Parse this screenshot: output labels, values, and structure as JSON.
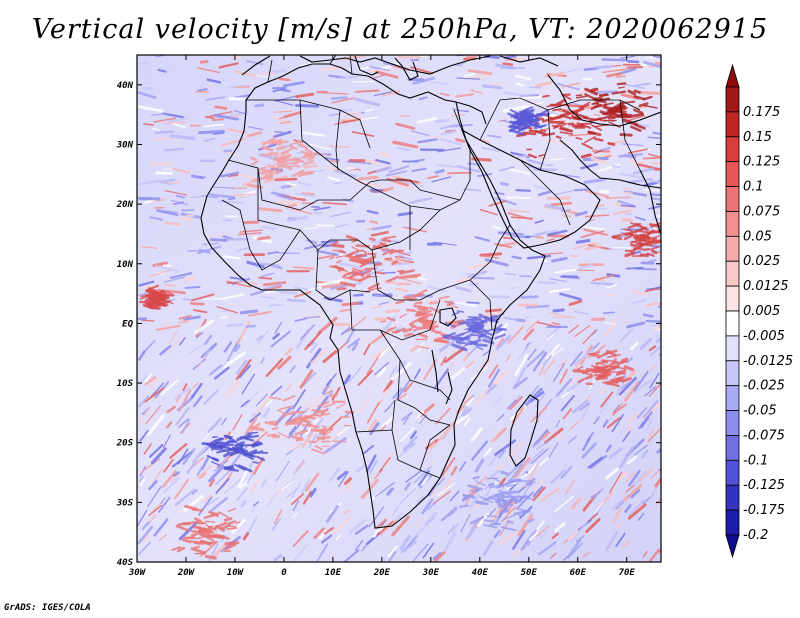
{
  "title": "Vertical velocity [m/s] at 250hPa, VT: 2020062915",
  "credit": "GrADS: IGES/COLA",
  "map": {
    "lon_range": [
      -30,
      77
    ],
    "lat_range": [
      -40,
      45
    ],
    "lon_ticks": [
      {
        "value": -30,
        "label": "30W"
      },
      {
        "value": -20,
        "label": "20W"
      },
      {
        "value": -10,
        "label": "10W"
      },
      {
        "value": 0,
        "label": "0"
      },
      {
        "value": 10,
        "label": "10E"
      },
      {
        "value": 20,
        "label": "20E"
      },
      {
        "value": 30,
        "label": "30E"
      },
      {
        "value": 40,
        "label": "40E"
      },
      {
        "value": 50,
        "label": "50E"
      },
      {
        "value": 60,
        "label": "60E"
      },
      {
        "value": 70,
        "label": "70E"
      }
    ],
    "lat_ticks": [
      {
        "value": 40,
        "label": "40N"
      },
      {
        "value": 30,
        "label": "30N"
      },
      {
        "value": 20,
        "label": "20N"
      },
      {
        "value": 10,
        "label": "10N"
      },
      {
        "value": 0,
        "label": "EQ"
      },
      {
        "value": -10,
        "label": "10S"
      },
      {
        "value": -20,
        "label": "20S"
      },
      {
        "value": -30,
        "label": "30S"
      },
      {
        "value": -40,
        "label": "40S"
      }
    ]
  },
  "colorbar": {
    "levels": [
      {
        "label": "0.175",
        "color": "#a01818"
      },
      {
        "label": "0.15",
        "color": "#c02626"
      },
      {
        "label": "0.125",
        "color": "#d83c3c"
      },
      {
        "label": "0.1",
        "color": "#e45858"
      },
      {
        "label": "0.075",
        "color": "#ec7474"
      },
      {
        "label": "0.05",
        "color": "#f29090"
      },
      {
        "label": "0.025",
        "color": "#f6acac"
      },
      {
        "label": "0.0125",
        "color": "#fac8c8"
      },
      {
        "label": "0.005",
        "color": "#fde4e4"
      },
      {
        "label": "-0.005",
        "color": "#ffffff"
      },
      {
        "label": "-0.0125",
        "color": "#e2e2fc"
      },
      {
        "label": "-0.025",
        "color": "#c6c6f8"
      },
      {
        "label": "-0.05",
        "color": "#aaaaf4"
      },
      {
        "label": "-0.075",
        "color": "#8e8eee"
      },
      {
        "label": "-0.1",
        "color": "#7070e4"
      },
      {
        "label": "-0.125",
        "color": "#5252d6"
      },
      {
        "label": "-0.175",
        "color": "#3434c0"
      },
      {
        "label": "-0.2",
        "color": "#1c1ca8"
      }
    ],
    "top_arrow_color": "#8e0a0a",
    "bottom_arrow_color": "#10108e"
  }
}
